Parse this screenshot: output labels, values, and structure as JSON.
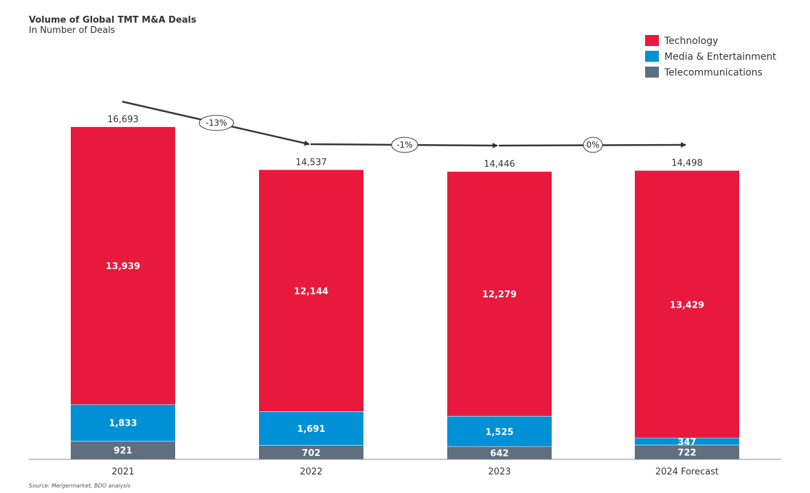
{
  "chart_data": {
    "type": "bar",
    "stacked": true,
    "title": "Volume of Global TMT M&A Deals",
    "subtitle": "In Number of Deals",
    "categories": [
      "2021",
      "2022",
      "2023",
      "2024 Forecast"
    ],
    "series": [
      {
        "name": "Telecommunications",
        "color": "#5f6f80",
        "values": [
          921,
          702,
          642,
          722
        ]
      },
      {
        "name": "Media & Entertainment",
        "color": "#0090d6",
        "values": [
          1833,
          1691,
          1525,
          347
        ]
      },
      {
        "name": "Technology",
        "color": "#e8193c",
        "values": [
          13939,
          12144,
          12279,
          13429
        ]
      }
    ],
    "totals": [
      "16,693",
      "14,537",
      "14,446",
      "14,498"
    ],
    "total_values": [
      16693,
      14537,
      14446,
      14498
    ],
    "legend": [
      "Technology",
      "Media & Entertainment",
      "Telecommunications"
    ],
    "legend_position": "top-right",
    "trend_labels": [
      "-13%",
      "-1%",
      "0%"
    ],
    "ylim": [
      0,
      17500
    ],
    "grid": false,
    "source": "Source: Mergermarket, BDO analysis"
  }
}
